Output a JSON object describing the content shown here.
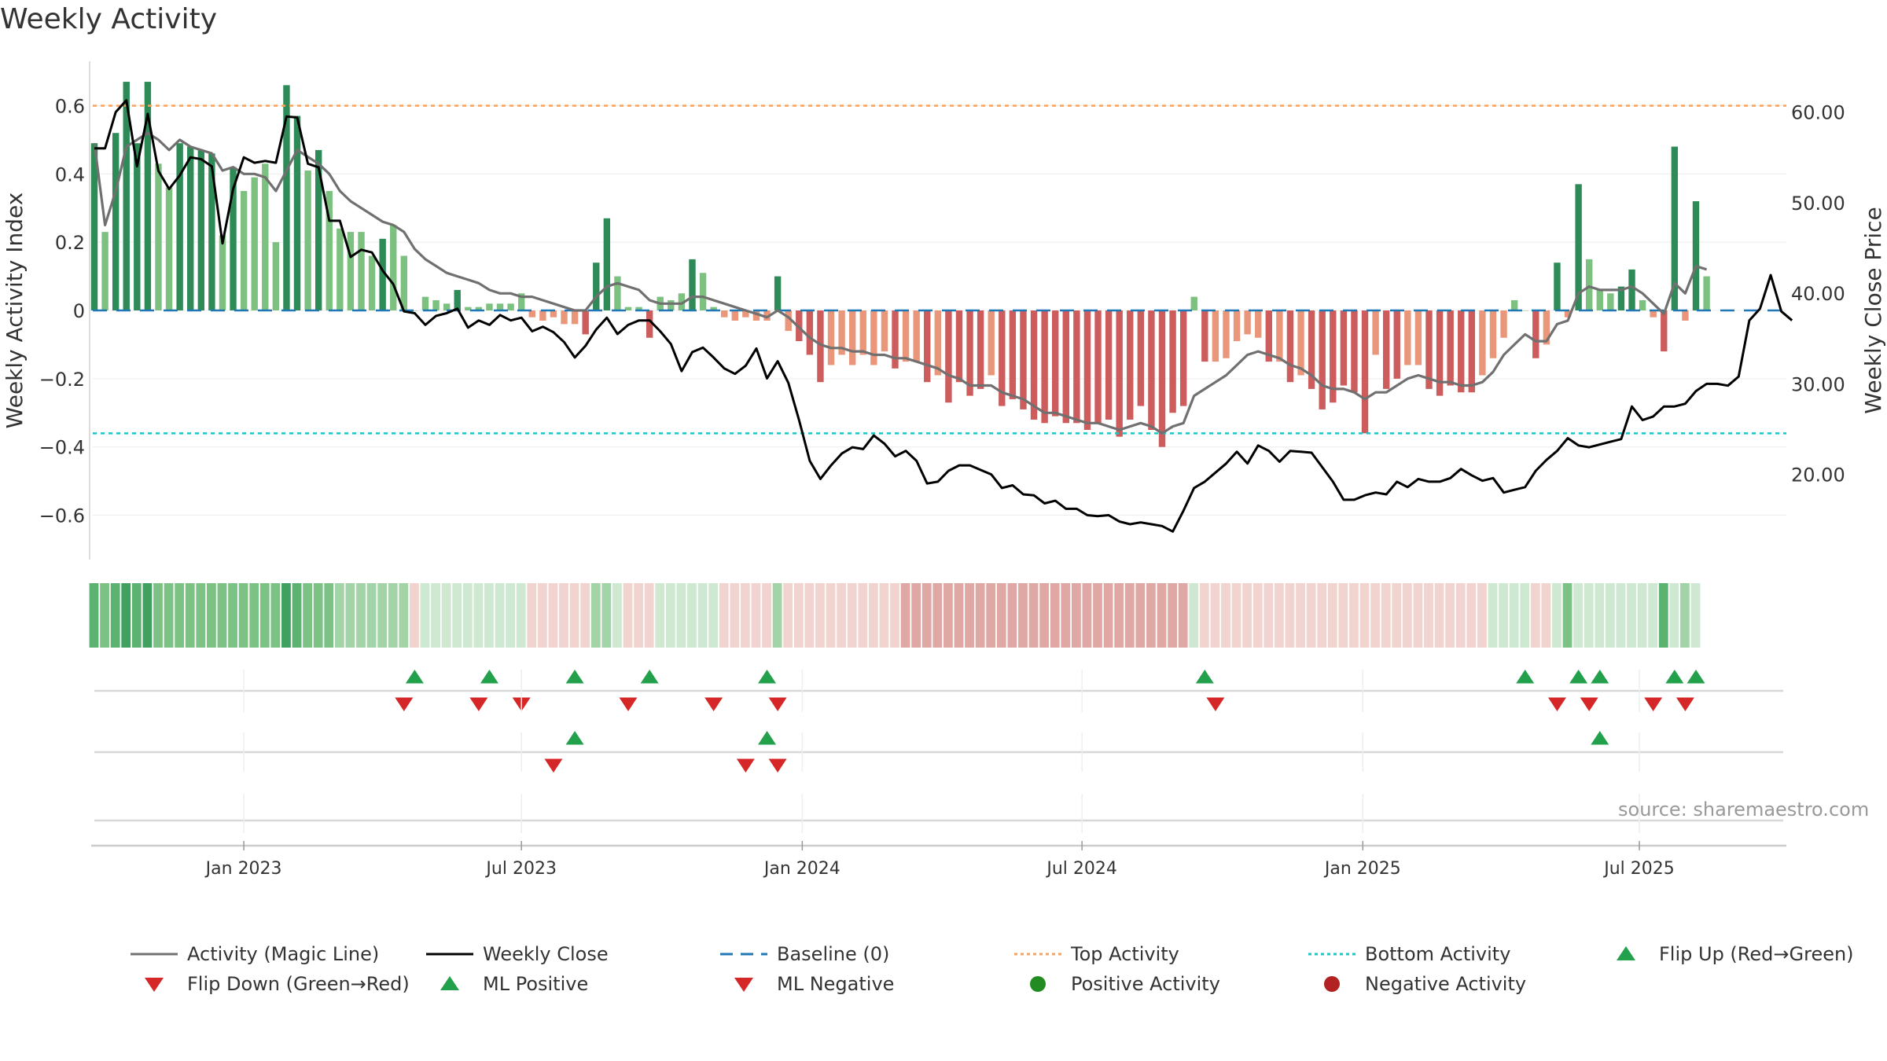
{
  "title": "Weekly Activity",
  "source": "source: sharemaestro.com",
  "colors": {
    "pos_dark": "#2e8b57",
    "pos_light": "#7cc17f",
    "neg_dark": "#cd5c5c",
    "neg_light": "#e9967a",
    "magic": "#707070",
    "close": "#000000",
    "baseline": "#1f77b4",
    "top": "#f4a460",
    "bottom": "#20c4c4",
    "up": "#22a04b",
    "down": "#d62728",
    "pos_marker": "#228b22",
    "neg_marker": "#b22222"
  },
  "chart_data": {
    "type": "bar",
    "title": "Weekly Activity",
    "ylabel": "Weekly Activity Index",
    "y2label": "Weekly Close Price",
    "ylim": [
      -0.73,
      0.73
    ],
    "y2lim": [
      10.6,
      65.6
    ],
    "yticks": [
      {
        "v": 0.6,
        "label": "0.6"
      },
      {
        "v": 0.4,
        "label": "0.4"
      },
      {
        "v": 0.2,
        "label": "0.2"
      },
      {
        "v": 0,
        "label": "0"
      },
      {
        "v": -0.2,
        "label": "−0.2"
      },
      {
        "v": -0.4,
        "label": "−0.4"
      },
      {
        "v": -0.6,
        "label": "−0.6"
      }
    ],
    "y2ticks": [
      {
        "v": 60,
        "label": "60.00"
      },
      {
        "v": 50,
        "label": "50.00"
      },
      {
        "v": 40,
        "label": "40.00"
      },
      {
        "v": 30,
        "label": "30.00"
      },
      {
        "v": 20,
        "label": "20.00"
      }
    ],
    "xticks": [
      {
        "week": 14,
        "label": "Jan 2023"
      },
      {
        "week": 40,
        "label": "Jul 2023"
      },
      {
        "week": 66.3,
        "label": "Jan 2024"
      },
      {
        "week": 92.5,
        "label": "Jul 2024"
      },
      {
        "week": 118.8,
        "label": "Jan 2025"
      },
      {
        "week": 144.7,
        "label": "Jul 2025"
      }
    ],
    "top_activity": 0.6,
    "bottom_activity": -0.36,
    "baseline": 0,
    "activity": [
      0.49,
      0.23,
      0.52,
      0.67,
      0.49,
      0.67,
      0.43,
      0.36,
      0.49,
      0.48,
      0.47,
      0.46,
      0.22,
      0.42,
      0.35,
      0.39,
      0.43,
      0.2,
      0.66,
      0.57,
      0.41,
      0.47,
      0.35,
      0.24,
      0.23,
      0.23,
      0.16,
      0.21,
      0.25,
      0.16,
      0.0,
      0.04,
      0.03,
      0.02,
      0.06,
      0.01,
      0.01,
      0.02,
      0.02,
      0.02,
      0.05,
      -0.02,
      -0.03,
      -0.02,
      -0.04,
      -0.04,
      -0.07,
      0.14,
      0.27,
      0.1,
      0.01,
      0.01,
      -0.08,
      0.04,
      0.03,
      0.05,
      0.15,
      0.11,
      0.01,
      -0.02,
      -0.03,
      -0.02,
      -0.03,
      -0.03,
      0.1,
      -0.06,
      -0.09,
      -0.13,
      -0.21,
      -0.16,
      -0.13,
      -0.16,
      -0.13,
      -0.16,
      -0.12,
      -0.17,
      -0.15,
      -0.15,
      -0.21,
      -0.19,
      -0.27,
      -0.21,
      -0.25,
      -0.23,
      -0.19,
      -0.28,
      -0.26,
      -0.29,
      -0.32,
      -0.33,
      -0.31,
      -0.33,
      -0.33,
      -0.35,
      -0.33,
      -0.32,
      -0.37,
      -0.32,
      -0.28,
      -0.35,
      -0.4,
      -0.3,
      -0.28,
      0.04,
      -0.15,
      -0.15,
      -0.14,
      -0.09,
      -0.07,
      -0.08,
      -0.15,
      -0.15,
      -0.21,
      -0.19,
      -0.23,
      -0.29,
      -0.27,
      -0.22,
      -0.24,
      -0.36,
      -0.13,
      -0.23,
      -0.2,
      -0.16,
      -0.16,
      -0.23,
      -0.25,
      -0.22,
      -0.24,
      -0.24,
      -0.19,
      -0.14,
      -0.08,
      0.03,
      0.0,
      -0.14,
      -0.1,
      0.14,
      -0.02,
      0.37,
      0.15,
      0.06,
      0.05,
      0.07,
      0.12,
      0.03,
      -0.02,
      -0.12,
      0.48,
      -0.03,
      0.32,
      0.1
    ],
    "close": [
      56,
      56,
      60,
      61.3,
      54,
      59.8,
      53.5,
      51.5,
      53,
      55,
      54.8,
      54,
      45.5,
      51.5,
      55,
      54.4,
      54.6,
      54.4,
      59.5,
      59.4,
      54.3,
      53.9,
      48,
      48,
      44,
      44.8,
      44.5,
      42.5,
      41,
      38,
      37.8,
      36.5,
      37.5,
      37.8,
      38.3,
      36.2,
      37,
      36.5,
      37.6,
      37,
      37.3,
      35.8,
      36.3,
      35.7,
      34.6,
      32.9,
      34.2,
      36,
      37.3,
      35.5,
      36.5,
      37,
      37,
      35.8,
      34.4,
      31.4,
      33.5,
      34,
      32.9,
      31.7,
      31.1,
      32,
      33.9,
      30.6,
      32.5,
      30.1,
      26,
      21.5,
      19.5,
      21,
      22.3,
      23,
      22.8,
      24.3,
      23.4,
      22,
      22.6,
      21.5,
      19,
      19.2,
      20.4,
      21,
      21,
      20.5,
      20,
      18.5,
      18.8,
      17.8,
      17.7,
      16.8,
      17.1,
      16.2,
      16.2,
      15.5,
      15.4,
      15.5,
      14.8,
      14.5,
      14.7,
      14.5,
      14.3,
      13.7,
      16,
      18.5,
      19.2,
      20.2,
      21.2,
      22.5,
      21.2,
      23.2,
      22.6,
      21.4,
      22.6,
      22.5,
      22.4,
      20.8,
      19.2,
      17.2,
      17.2,
      17.7,
      18,
      17.8,
      19.2,
      18.6,
      19.5,
      19.2,
      19.2,
      19.6,
      20.6,
      19.9,
      19.3,
      19.6,
      18,
      18.3,
      18.6,
      20.4,
      21.6,
      22.6,
      24,
      23.2,
      23,
      23.3,
      23.6,
      23.9,
      27.5,
      26,
      26.4,
      27.5,
      27.5,
      27.8,
      29.2,
      30,
      30,
      29.8,
      30.8,
      37,
      38.3,
      42,
      38,
      37
    ],
    "magic": [
      0.49,
      0.25,
      0.35,
      0.48,
      0.5,
      0.52,
      0.5,
      0.47,
      0.5,
      0.48,
      0.47,
      0.46,
      0.41,
      0.42,
      0.4,
      0.4,
      0.39,
      0.35,
      0.41,
      0.47,
      0.45,
      0.43,
      0.4,
      0.35,
      0.32,
      0.3,
      0.28,
      0.26,
      0.25,
      0.23,
      0.18,
      0.15,
      0.13,
      0.11,
      0.1,
      0.09,
      0.08,
      0.06,
      0.05,
      0.05,
      0.04,
      0.04,
      0.03,
      0.02,
      0.01,
      0.0,
      0.0,
      0.04,
      0.07,
      0.08,
      0.07,
      0.06,
      0.03,
      0.02,
      0.02,
      0.02,
      0.04,
      0.04,
      0.03,
      0.02,
      0.01,
      0.0,
      -0.01,
      -0.02,
      0.0,
      -0.02,
      -0.05,
      -0.08,
      -0.1,
      -0.11,
      -0.11,
      -0.12,
      -0.12,
      -0.13,
      -0.13,
      -0.14,
      -0.14,
      -0.15,
      -0.16,
      -0.17,
      -0.19,
      -0.2,
      -0.22,
      -0.22,
      -0.22,
      -0.24,
      -0.25,
      -0.26,
      -0.28,
      -0.3,
      -0.3,
      -0.31,
      -0.32,
      -0.33,
      -0.33,
      -0.34,
      -0.35,
      -0.34,
      -0.33,
      -0.34,
      -0.36,
      -0.34,
      -0.33,
      -0.25,
      -0.23,
      -0.21,
      -0.19,
      -0.16,
      -0.13,
      -0.12,
      -0.13,
      -0.14,
      -0.16,
      -0.17,
      -0.19,
      -0.22,
      -0.23,
      -0.23,
      -0.24,
      -0.26,
      -0.24,
      -0.24,
      -0.22,
      -0.2,
      -0.19,
      -0.2,
      -0.21,
      -0.21,
      -0.22,
      -0.22,
      -0.21,
      -0.18,
      -0.13,
      -0.1,
      -0.07,
      -0.09,
      -0.09,
      -0.04,
      -0.03,
      0.05,
      0.07,
      0.06,
      0.06,
      0.06,
      0.07,
      0.05,
      0.02,
      -0.01,
      0.08,
      0.05,
      0.13,
      0.12
    ]
  },
  "regime_strip": [
    "G3",
    "G2",
    "G3",
    "G4",
    "G3",
    "G4",
    "G2",
    "G2",
    "G2",
    "G2",
    "G2",
    "G2",
    "G2",
    "G2",
    "G2",
    "G2",
    "G2",
    "G2",
    "G4",
    "G3",
    "G2",
    "G2",
    "G2",
    "G1",
    "G1",
    "G1",
    "G1",
    "G1",
    "G1",
    "G1",
    "R0",
    "G0",
    "G0",
    "G0",
    "G0",
    "G0",
    "G0",
    "G0",
    "G0",
    "G0",
    "G0",
    "R0",
    "R0",
    "R0",
    "R0",
    "R0",
    "R0",
    "G1",
    "G1",
    "G0",
    "R0",
    "R0",
    "R0",
    "G0",
    "G0",
    "G0",
    "G0",
    "G0",
    "G0",
    "R0",
    "R0",
    "R0",
    "R0",
    "R0",
    "G1",
    "R0",
    "R0",
    "R0",
    "R0",
    "R0",
    "R0",
    "R0",
    "R0",
    "R0",
    "R0",
    "R0",
    "R1",
    "R1",
    "R1",
    "R1",
    "R1",
    "R1",
    "R1",
    "R1",
    "R1",
    "R1",
    "R1",
    "R1",
    "R1",
    "R1",
    "R1",
    "R1",
    "R1",
    "R1",
    "R1",
    "R1",
    "R1",
    "R1",
    "R1",
    "R1",
    "R1",
    "R1",
    "R1",
    "G0",
    "R0",
    "R0",
    "R0",
    "R0",
    "R0",
    "R0",
    "R0",
    "R0",
    "R0",
    "R0",
    "R0",
    "R0",
    "R0",
    "R0",
    "R0",
    "R0",
    "R0",
    "R0",
    "R0",
    "R0",
    "R0",
    "R0",
    "R0",
    "R0",
    "R0",
    "R0",
    "R0",
    "G0",
    "G0",
    "G0",
    "G0",
    "R0",
    "R0",
    "G0",
    "G2",
    "G0",
    "G0",
    "G0",
    "G0",
    "G0",
    "G0",
    "G0",
    "G0",
    "G3",
    "G0",
    "G1",
    "G0"
  ],
  "signals": {
    "flip_up": [
      30,
      37,
      45,
      52,
      63,
      104,
      134,
      139,
      141,
      148,
      150
    ],
    "flip_down": [
      29,
      36,
      40,
      50,
      58,
      64,
      105,
      137,
      140,
      146,
      149
    ],
    "ml_positive": [
      45,
      63,
      141
    ],
    "ml_negative": [
      43,
      61,
      64
    ]
  },
  "legend": {
    "magic": "Activity (Magic Line)",
    "close": "Weekly Close",
    "baseline": "Baseline (0)",
    "top": "Top Activity",
    "bottom": "Bottom Activity",
    "flip_up": "Flip Up (Red→Green)",
    "flip_down": "Flip Down (Green→Red)",
    "ml_pos": "ML Positive",
    "ml_neg": "ML Negative",
    "pos_act": "Positive Activity",
    "neg_act": "Negative Activity"
  }
}
